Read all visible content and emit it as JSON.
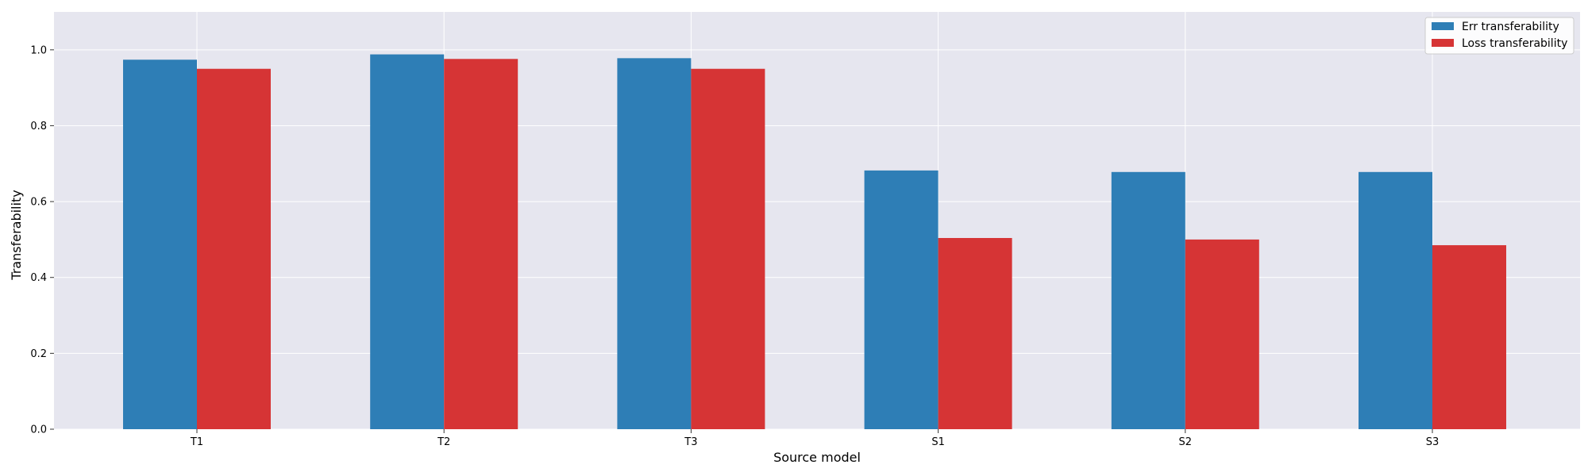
{
  "chart_data": {
    "type": "bar",
    "title": "",
    "xlabel": "Source model",
    "ylabel": "Transferability",
    "categories": [
      "T1",
      "T2",
      "T3",
      "S1",
      "S2",
      "S3"
    ],
    "series": [
      {
        "name": "Err transferability",
        "color": "#2e7eb6",
        "values": [
          0.974,
          0.988,
          0.978,
          0.682,
          0.678,
          0.678
        ]
      },
      {
        "name": "Loss transferability",
        "color": "#d63435",
        "values": [
          0.95,
          0.976,
          0.95,
          0.504,
          0.5,
          0.485
        ]
      }
    ],
    "ylim": [
      0,
      1.1
    ],
    "yticks": [
      "0.0",
      "0.2",
      "0.4",
      "0.6",
      "0.8",
      "1.0"
    ],
    "grid": true,
    "legend_position": "top-right",
    "background_color": "#e6e6ef"
  }
}
